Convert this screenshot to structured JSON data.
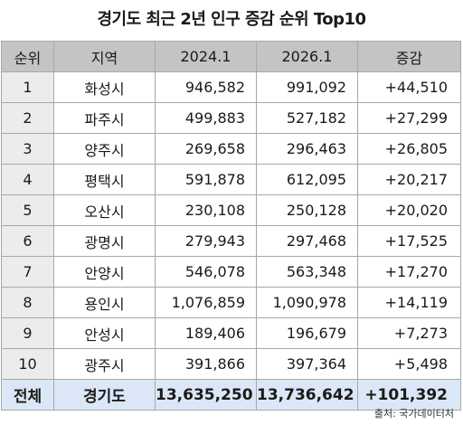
{
  "title": "경기도 최근 2년 인구 증감 순위 Top10",
  "columns": [
    "순위",
    "지역",
    "2024.1",
    "2026.1",
    "증감"
  ],
  "rows": [
    {
      "rank": "1",
      "region": "화성시",
      "pop2024": "946,582",
      "pop2026": "991,092",
      "change": "+44,510"
    },
    {
      "rank": "2",
      "region": "파주시",
      "pop2024": "499,883",
      "pop2026": "527,182",
      "change": "+27,299"
    },
    {
      "rank": "3",
      "region": "양주시",
      "pop2024": "269,658",
      "pop2026": "296,463",
      "change": "+26,805"
    },
    {
      "rank": "4",
      "region": "평택시",
      "pop2024": "591,878",
      "pop2026": "612,095",
      "change": "+20,217"
    },
    {
      "rank": "5",
      "region": "오산시",
      "pop2024": "230,108",
      "pop2026": "250,128",
      "change": "+20,020"
    },
    {
      "rank": "6",
      "region": "광명시",
      "pop2024": "279,943",
      "pop2026": "297,468",
      "change": "+17,525"
    },
    {
      "rank": "7",
      "region": "안양시",
      "pop2024": "546,078",
      "pop2026": "563,348",
      "change": "+17,270"
    },
    {
      "rank": "8",
      "region": "용인시",
      "pop2024": "1,076,859",
      "pop2026": "1,090,978",
      "change": "+14,119"
    },
    {
      "rank": "9",
      "region": "안성시",
      "pop2024": "189,406",
      "pop2026": "196,679",
      "change": "+7,273"
    },
    {
      "rank": "10",
      "region": "광주시",
      "pop2024": "391,866",
      "pop2026": "397,364",
      "change": "+5,498"
    }
  ],
  "total": {
    "rank": "전체",
    "region": "경기도",
    "pop2024": "13,635,250",
    "pop2026": "13,736,642",
    "change": "+101,392"
  },
  "source": "출처: 국가데이터처"
}
